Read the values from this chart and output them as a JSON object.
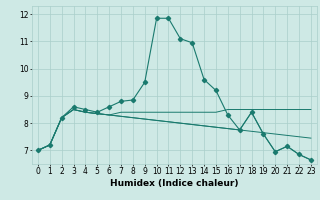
{
  "xlabel": "Humidex (Indice chaleur)",
  "bg_color": "#cee9e5",
  "grid_color": "#aacfca",
  "line_color": "#1a7a6e",
  "x_values": [
    0,
    1,
    2,
    3,
    4,
    5,
    6,
    7,
    8,
    9,
    10,
    11,
    12,
    13,
    14,
    15,
    16,
    17,
    18,
    19,
    20,
    21,
    22,
    23
  ],
  "series": [
    [
      7.0,
      7.2,
      8.2,
      8.6,
      8.5,
      8.4,
      8.6,
      8.8,
      8.85,
      9.5,
      11.85,
      11.85,
      11.1,
      10.95,
      9.6,
      9.2,
      8.3,
      7.75,
      8.4,
      7.6,
      6.95,
      7.15,
      6.85,
      6.65
    ],
    [
      7.0,
      7.2,
      8.2,
      8.5,
      8.4,
      8.35,
      8.3,
      8.25,
      8.2,
      8.15,
      8.1,
      8.05,
      8.0,
      7.95,
      7.9,
      7.85,
      7.8,
      7.75,
      7.7,
      7.65,
      7.6,
      7.55,
      7.5,
      7.45
    ],
    [
      7.0,
      7.2,
      8.2,
      8.5,
      8.4,
      8.35,
      8.3,
      8.4,
      8.4,
      8.4,
      8.4,
      8.4,
      8.4,
      8.4,
      8.4,
      8.4,
      8.5,
      8.5,
      8.5,
      8.5,
      8.5,
      8.5,
      8.5,
      8.5
    ],
    [
      7.0,
      7.2,
      8.2,
      8.5,
      8.4,
      8.35,
      8.3,
      8.25,
      8.2,
      8.15,
      8.1,
      8.05,
      8.0,
      7.95,
      7.9,
      7.85,
      7.8,
      7.75,
      8.4,
      7.6,
      6.95,
      7.15,
      6.85,
      6.65
    ]
  ],
  "ylim": [
    6.5,
    12.3
  ],
  "xlim": [
    -0.5,
    23.5
  ],
  "yticks": [
    7,
    8,
    9,
    10,
    11,
    12
  ],
  "xticks": [
    0,
    1,
    2,
    3,
    4,
    5,
    6,
    7,
    8,
    9,
    10,
    11,
    12,
    13,
    14,
    15,
    16,
    17,
    18,
    19,
    20,
    21,
    22,
    23
  ],
  "label_fontsize": 6.5,
  "tick_fontsize": 5.5
}
